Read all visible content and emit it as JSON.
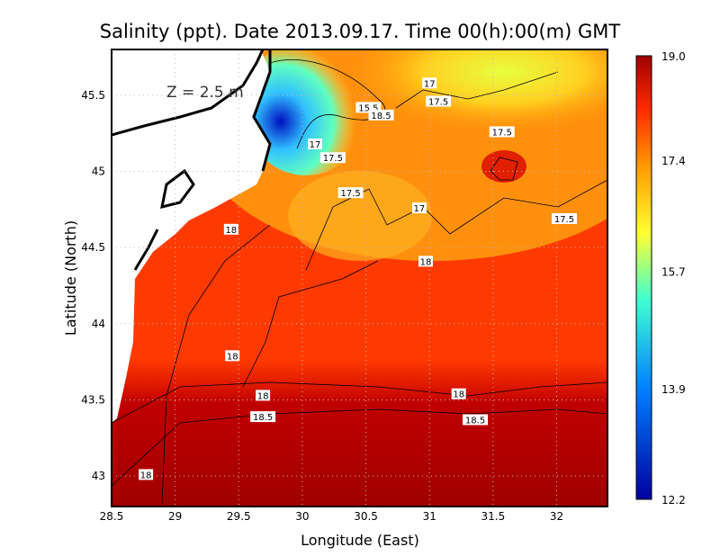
{
  "title": "Salinity (ppt). Date 2013.09.17. Time 00(h):00(m) GMT",
  "depth_label": "Z = 2.5 m",
  "chart_data": {
    "type": "heatmap",
    "title": "Salinity (ppt). Date 2013.09.17. Time 00(h):00(m) GMT",
    "xlabel": "Longitude (East)",
    "ylabel": "Latitude (North)",
    "xlim": [
      28.5,
      32.4
    ],
    "ylim": [
      42.8,
      45.8
    ],
    "x_ticks": [
      "28.5",
      "29",
      "29.5",
      "30",
      "30.5",
      "31",
      "31.5",
      "32"
    ],
    "y_ticks": [
      "43",
      "43.5",
      "44",
      "44.5",
      "45",
      "45.5"
    ],
    "grid": true,
    "colorbar": {
      "range": [
        12.2,
        19.0
      ],
      "tick_labels": [
        "19.0",
        "17.4",
        "15.7",
        "13.9",
        "12.2"
      ],
      "colors": [
        "#0000a0",
        "#00c8ff",
        "#ffff30",
        "#ff9a00",
        "#ff2a00",
        "#a00000"
      ]
    },
    "contour_labels": [
      {
        "text": "17",
        "lon": 31.0,
        "lat": 45.58
      },
      {
        "text": "17.5",
        "lon": 31.07,
        "lat": 45.46
      },
      {
        "text": "15.5",
        "lon": 30.52,
        "lat": 45.42
      },
      {
        "text": "18.5",
        "lon": 30.62,
        "lat": 45.37
      },
      {
        "text": "17.5",
        "lon": 31.57,
        "lat": 45.26
      },
      {
        "text": "17",
        "lon": 30.1,
        "lat": 45.18
      },
      {
        "text": "17.5",
        "lon": 30.24,
        "lat": 45.09
      },
      {
        "text": "17.5",
        "lon": 30.38,
        "lat": 44.86
      },
      {
        "text": "17",
        "lon": 30.92,
        "lat": 44.76
      },
      {
        "text": "17.5",
        "lon": 32.06,
        "lat": 44.69
      },
      {
        "text": "18",
        "lon": 29.44,
        "lat": 44.62
      },
      {
        "text": "18",
        "lon": 30.97,
        "lat": 44.41
      },
      {
        "text": "18",
        "lon": 29.45,
        "lat": 43.79
      },
      {
        "text": "18",
        "lon": 29.69,
        "lat": 43.53
      },
      {
        "text": "18",
        "lon": 31.23,
        "lat": 43.54
      },
      {
        "text": "18.5",
        "lon": 29.69,
        "lat": 43.39
      },
      {
        "text": "18.5",
        "lon": 31.36,
        "lat": 43.37
      },
      {
        "text": "18",
        "lon": 28.77,
        "lat": 43.01
      }
    ]
  }
}
